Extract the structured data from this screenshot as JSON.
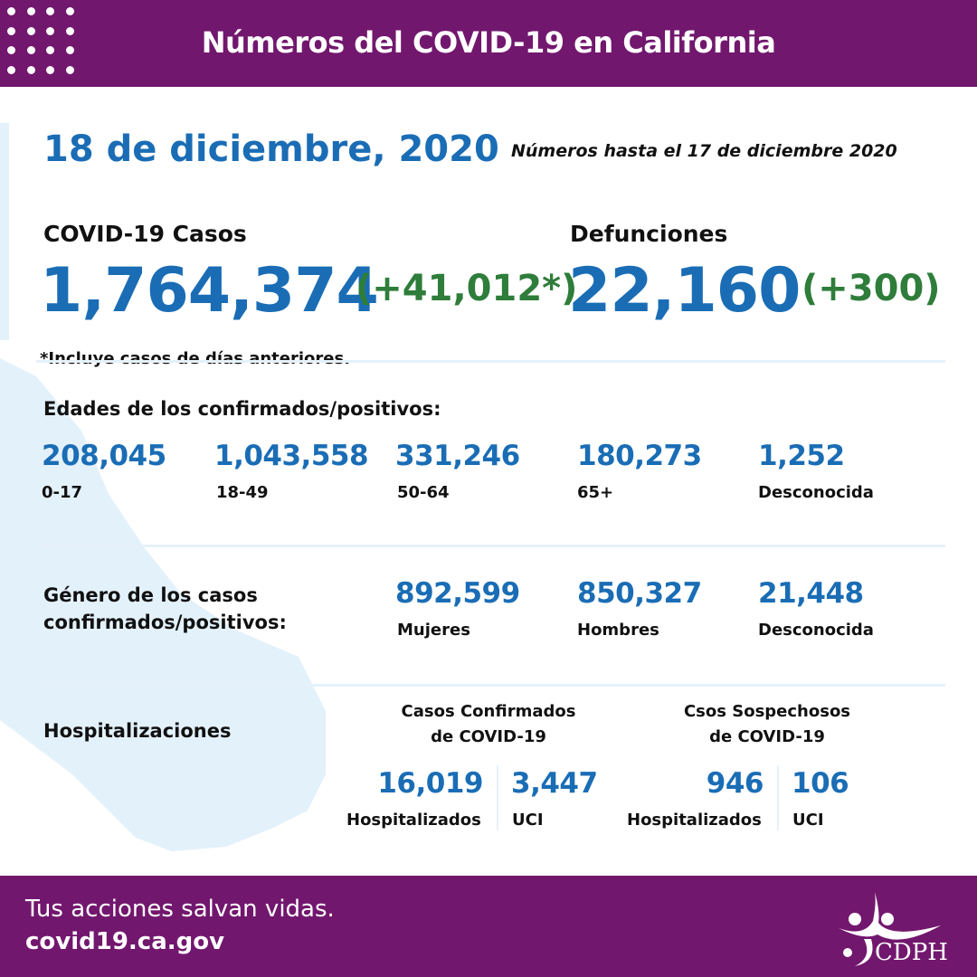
{
  "header": {
    "title": "Números del COVID-19 en California"
  },
  "date": "18 de diciembre, 2020",
  "as_of": "Números hasta el 17 de diciembre 2020",
  "cases": {
    "label": "COVID-19 Casos",
    "total": "1,764,374",
    "change": "(+41,012*)",
    "footnote": "*Incluye casos de días anteriores."
  },
  "deaths": {
    "label": "Defunciones",
    "total": "22,160",
    "change": "(+300)"
  },
  "ages": {
    "title": "Edades de los confirmados/positivos:",
    "items": [
      {
        "value": "208,045",
        "label": "0-17"
      },
      {
        "value": "1,043,558",
        "label": "18-49"
      },
      {
        "value": "331,246",
        "label": "50-64"
      },
      {
        "value": "180,273",
        "label": "65+"
      },
      {
        "value": "1,252",
        "label": "Desconocida"
      }
    ]
  },
  "gender": {
    "title_line1": "Género de los casos",
    "title_line2": "confirmados/positivos:",
    "items": [
      {
        "value": "892,599",
        "label": "Mujeres"
      },
      {
        "value": "850,327",
        "label": "Hombres"
      },
      {
        "value": "21,448",
        "label": "Desconocida"
      }
    ]
  },
  "hosp": {
    "title": "Hospitalizaciones",
    "confirmed": {
      "title_line1": "Casos Confirmados",
      "title_line2": "de COVID-19",
      "hosp_value": "16,019",
      "hosp_label": "Hospitalizados",
      "icu_value": "3,447",
      "icu_label": "UCI"
    },
    "suspected": {
      "title_line1": "Csos Sospechosos",
      "title_line2": "de COVID-19",
      "hosp_value": "946",
      "hosp_label": "Hospitalizados",
      "icu_value": "106",
      "icu_label": "UCI"
    }
  },
  "footer": {
    "slogan": "Tus acciones salvan vidas.",
    "url": "covid19.ca.gov",
    "logo_text": "CDPH"
  },
  "colors": {
    "purple": "#72176e",
    "blue": "#1a6db5",
    "green": "#2e7d3a",
    "map": "#e3f1fb"
  }
}
